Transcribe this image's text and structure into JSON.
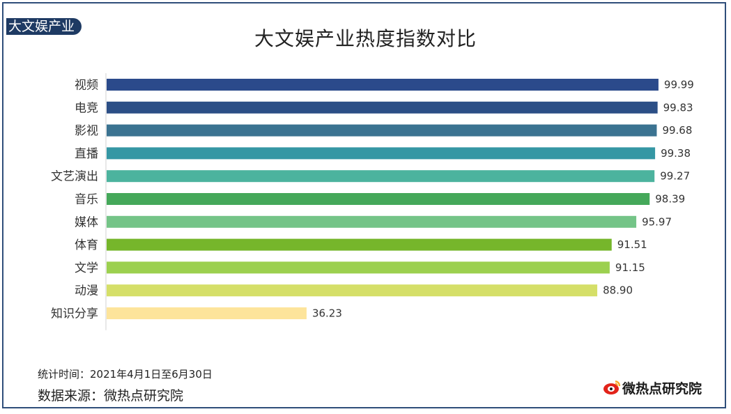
{
  "header": {
    "tag": "大文娱产业"
  },
  "chart_data": {
    "type": "bar",
    "orientation": "horizontal",
    "title": "大文娱产业热度指数对比",
    "categories": [
      "视频",
      "电竞",
      "影视",
      "直播",
      "文艺演出",
      "音乐",
      "媒体",
      "体育",
      "文学",
      "动漫",
      "知识分享"
    ],
    "values": [
      99.99,
      99.83,
      99.68,
      99.38,
      99.27,
      98.39,
      95.97,
      91.51,
      91.15,
      88.9,
      36.23
    ],
    "value_labels": [
      "99.99",
      "99.83",
      "99.68",
      "99.38",
      "99.27",
      "98.39",
      "95.97",
      "91.51",
      "91.15",
      "88.90",
      "36.23"
    ],
    "colors": [
      "#2b4a8b",
      "#2c4f86",
      "#3b7391",
      "#3597a4",
      "#4cb39e",
      "#45a85a",
      "#74c487",
      "#76b62b",
      "#9cd04f",
      "#d5df68",
      "#fde49b"
    ],
    "xlim": [
      0,
      100
    ],
    "xlabel": "",
    "ylabel": ""
  },
  "footer": {
    "stat_time": "统计时间：2021年4月1日至6月30日",
    "source": "数据来源：微热点研究院",
    "logo_text": "微热点研究院"
  }
}
